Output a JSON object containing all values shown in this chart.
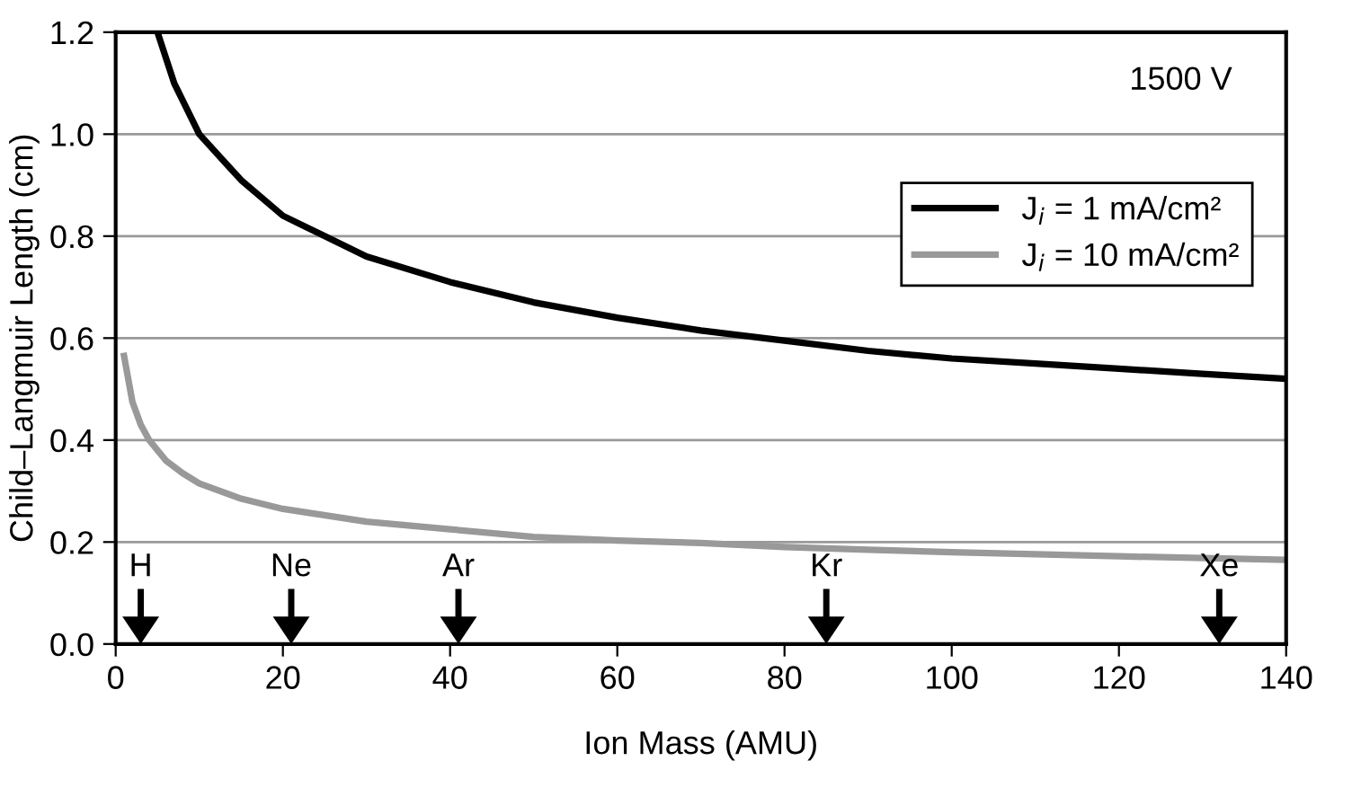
{
  "chart_data": {
    "type": "line",
    "xlabel": "Ion Mass (AMU)",
    "ylabel": "Child–Langmuir Length (cm)",
    "xlim": [
      0,
      140
    ],
    "xticks": [
      0,
      20,
      40,
      60,
      80,
      100,
      120,
      140
    ],
    "ylim": [
      0,
      1.2
    ],
    "yticks": [
      {
        "value": 0,
        "label": "0.0"
      },
      0.2,
      0.4,
      0.6,
      0.8,
      {
        "value": 1,
        "label": "1.0"
      },
      1.2
    ],
    "grid": "y",
    "legend": "top right",
    "line_style": "solid",
    "marker": "none",
    "series": [
      {
        "name": "J$_{i}$ = 1 mA/cm²",
        "color": "#000000",
        "x": [
          5,
          7,
          10,
          15,
          20,
          25,
          30,
          40,
          50,
          60,
          70,
          80,
          90,
          100,
          110,
          120,
          130,
          140
        ],
        "values": [
          1.2,
          1.1,
          1.0,
          0.91,
          0.84,
          0.8,
          0.76,
          0.71,
          0.67,
          0.64,
          0.615,
          0.595,
          0.575,
          0.56,
          0.55,
          0.54,
          0.53,
          0.52
        ]
      },
      {
        "name": "J$_{i}$ = 10 mA/cm²",
        "color": "#999999",
        "x": [
          1,
          2,
          3,
          4,
          6,
          8,
          10,
          15,
          20,
          30,
          40,
          50,
          60,
          70,
          80,
          90,
          100,
          120,
          140
        ],
        "values": [
          0.565,
          0.475,
          0.43,
          0.4,
          0.36,
          0.335,
          0.315,
          0.285,
          0.265,
          0.24,
          0.225,
          0.21,
          0.203,
          0.198,
          0.19,
          0.185,
          0.18,
          0.172,
          0.165
        ]
      }
    ],
    "annotations": [
      "1500 V"
    ],
    "ref_lines": [
      {
        "axis": "x",
        "value": 3,
        "label": "H"
      },
      {
        "axis": "x",
        "value": 21,
        "label": "Ne"
      },
      {
        "axis": "x",
        "value": 41,
        "label": "Ar"
      },
      {
        "axis": "x",
        "value": 85,
        "label": "Kr"
      },
      {
        "axis": "x",
        "value": 132,
        "label": "Xe"
      }
    ]
  }
}
